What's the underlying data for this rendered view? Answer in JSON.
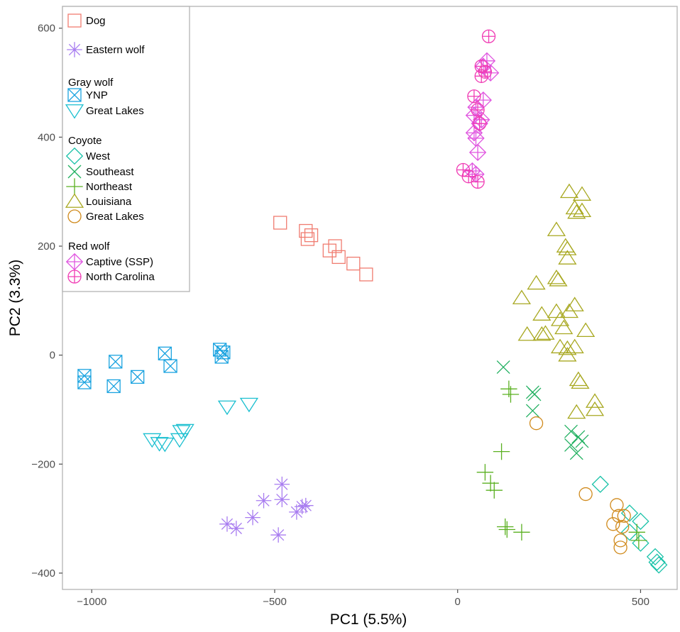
{
  "chart_data": {
    "type": "scatter",
    "xlabel": "PC1 (5.5%)",
    "ylabel": "PC2 (3.3%)",
    "xlim": [
      -1080,
      600
    ],
    "ylim": [
      -430,
      640
    ],
    "xticks": [
      -1000,
      -500,
      0,
      500
    ],
    "yticks": [
      -400,
      -200,
      0,
      200,
      400,
      600
    ],
    "xtick_labels": [
      "−1000",
      "−500",
      "0",
      "500"
    ],
    "ytick_labels": [
      "−400",
      "−200",
      "0",
      "200",
      "400",
      "600"
    ],
    "grid": false,
    "legend_position": "top-left",
    "legend": [
      {
        "kind": "item",
        "series": "dog",
        "label": "Dog"
      },
      {
        "kind": "item",
        "series": "eastern_wolf",
        "label": "Eastern wolf"
      },
      {
        "kind": "header",
        "label": "Gray wolf"
      },
      {
        "kind": "item",
        "series": "gw_ynp",
        "label": "YNP"
      },
      {
        "kind": "item",
        "series": "gw_gl",
        "label": "Great Lakes"
      },
      {
        "kind": "header",
        "label": "Coyote"
      },
      {
        "kind": "item",
        "series": "coy_west",
        "label": "West"
      },
      {
        "kind": "item",
        "series": "coy_se",
        "label": "Southeast"
      },
      {
        "kind": "item",
        "series": "coy_ne",
        "label": "Northeast"
      },
      {
        "kind": "item",
        "series": "coy_la",
        "label": "Louisiana"
      },
      {
        "kind": "item",
        "series": "coy_gl",
        "label": "Great Lakes"
      },
      {
        "kind": "header",
        "label": "Red wolf"
      },
      {
        "kind": "item",
        "series": "rw_ssp",
        "label": "Captive (SSP)"
      },
      {
        "kind": "item",
        "series": "rw_nc",
        "label": "North Carolina"
      }
    ],
    "series": [
      {
        "id": "dog",
        "name": "Dog",
        "color": "#f07c70",
        "shape": "square",
        "points": [
          [
            -485,
            243
          ],
          [
            -415,
            228
          ],
          [
            -410,
            213
          ],
          [
            -400,
            220
          ],
          [
            -350,
            192
          ],
          [
            -335,
            200
          ],
          [
            -325,
            180
          ],
          [
            -285,
            168
          ],
          [
            -250,
            148
          ]
        ]
      },
      {
        "id": "eastern_wolf",
        "name": "Eastern wolf",
        "color": "#a87cf0",
        "shape": "asterisk",
        "points": [
          [
            -630,
            -310
          ],
          [
            -605,
            -318
          ],
          [
            -560,
            -298
          ],
          [
            -530,
            -267
          ],
          [
            -480,
            -237
          ],
          [
            -480,
            -265
          ],
          [
            -440,
            -288
          ],
          [
            -425,
            -278
          ],
          [
            -415,
            -276
          ],
          [
            -490,
            -330
          ]
        ]
      },
      {
        "id": "gw_ynp",
        "name": "YNP",
        "color": "#1aa3e0",
        "shape": "square-x",
        "points": [
          [
            -1020,
            -38
          ],
          [
            -1020,
            -50
          ],
          [
            -935,
            -12
          ],
          [
            -940,
            -57
          ],
          [
            -875,
            -40
          ],
          [
            -800,
            3
          ],
          [
            -785,
            -20
          ],
          [
            -650,
            10
          ],
          [
            -640,
            5
          ],
          [
            -645,
            -3
          ]
        ]
      },
      {
        "id": "gw_gl",
        "name": "Great Lakes",
        "color": "#1abfd0",
        "shape": "triangle-down",
        "points": [
          [
            -835,
            -155
          ],
          [
            -815,
            -162
          ],
          [
            -800,
            -163
          ],
          [
            -760,
            -155
          ],
          [
            -755,
            -140
          ],
          [
            -745,
            -138
          ],
          [
            -630,
            -95
          ],
          [
            -570,
            -90
          ]
        ]
      },
      {
        "id": "coy_west",
        "name": "West",
        "color": "#19c2a8",
        "shape": "diamond",
        "points": [
          [
            390,
            -237
          ],
          [
            470,
            -290
          ],
          [
            500,
            -305
          ],
          [
            470,
            -325
          ],
          [
            500,
            -345
          ],
          [
            540,
            -370
          ],
          [
            545,
            -380
          ],
          [
            550,
            -385
          ]
        ]
      },
      {
        "id": "coy_se",
        "name": "Southeast",
        "color": "#20b060",
        "shape": "x",
        "points": [
          [
            125,
            -22
          ],
          [
            205,
            -68
          ],
          [
            210,
            -72
          ],
          [
            205,
            -102
          ],
          [
            310,
            -140
          ],
          [
            330,
            -150
          ],
          [
            310,
            -165
          ],
          [
            340,
            -158
          ],
          [
            325,
            -180
          ]
        ]
      },
      {
        "id": "coy_ne",
        "name": "Northeast",
        "color": "#5ab020",
        "shape": "plus",
        "points": [
          [
            140,
            -62
          ],
          [
            145,
            -72
          ],
          [
            120,
            -177
          ],
          [
            75,
            -215
          ],
          [
            90,
            -235
          ],
          [
            100,
            -248
          ],
          [
            130,
            -315
          ],
          [
            135,
            -320
          ],
          [
            175,
            -325
          ],
          [
            490,
            -325
          ],
          [
            495,
            -340
          ]
        ]
      },
      {
        "id": "coy_la",
        "name": "Louisiana",
        "color": "#a8a820",
        "shape": "triangle-up",
        "points": [
          [
            305,
            300
          ],
          [
            340,
            295
          ],
          [
            320,
            270
          ],
          [
            325,
            262
          ],
          [
            340,
            265
          ],
          [
            270,
            230
          ],
          [
            295,
            200
          ],
          [
            300,
            195
          ],
          [
            300,
            178
          ],
          [
            270,
            142
          ],
          [
            275,
            138
          ],
          [
            215,
            132
          ],
          [
            175,
            105
          ],
          [
            230,
            75
          ],
          [
            270,
            80
          ],
          [
            305,
            80
          ],
          [
            320,
            92
          ],
          [
            280,
            65
          ],
          [
            290,
            50
          ],
          [
            240,
            40
          ],
          [
            190,
            38
          ],
          [
            230,
            38
          ],
          [
            280,
            15
          ],
          [
            300,
            12
          ],
          [
            320,
            15
          ],
          [
            300,
            0
          ],
          [
            330,
            -45
          ],
          [
            335,
            -50
          ],
          [
            350,
            45
          ],
          [
            375,
            -85
          ],
          [
            375,
            -100
          ],
          [
            325,
            -105
          ]
        ]
      },
      {
        "id": "coy_gl",
        "name": "Great Lakes",
        "color": "#d08a1c",
        "shape": "circle",
        "points": [
          [
            215,
            -125
          ],
          [
            350,
            -255
          ],
          [
            435,
            -275
          ],
          [
            440,
            -295
          ],
          [
            455,
            -295
          ],
          [
            425,
            -310
          ],
          [
            450,
            -315
          ],
          [
            445,
            -340
          ],
          [
            445,
            -353
          ]
        ]
      },
      {
        "id": "rw_ssp",
        "name": "Captive (SSP)",
        "color": "#e056e0",
        "shape": "diamond-plus",
        "points": [
          [
            80,
            540
          ],
          [
            90,
            518
          ],
          [
            70,
            530
          ],
          [
            70,
            468
          ],
          [
            50,
            455
          ],
          [
            45,
            440
          ],
          [
            65,
            432
          ],
          [
            45,
            408
          ],
          [
            50,
            398
          ],
          [
            55,
            372
          ],
          [
            40,
            338
          ],
          [
            50,
            332
          ],
          [
            60,
            425
          ]
        ]
      },
      {
        "id": "rw_nc",
        "name": "North Carolina",
        "color": "#f03cb4",
        "shape": "circle-plus",
        "points": [
          [
            85,
            585
          ],
          [
            65,
            530
          ],
          [
            65,
            512
          ],
          [
            75,
            520
          ],
          [
            45,
            475
          ],
          [
            55,
            450
          ],
          [
            60,
            425
          ],
          [
            15,
            340
          ],
          [
            30,
            328
          ],
          [
            55,
            318
          ]
        ]
      }
    ]
  }
}
